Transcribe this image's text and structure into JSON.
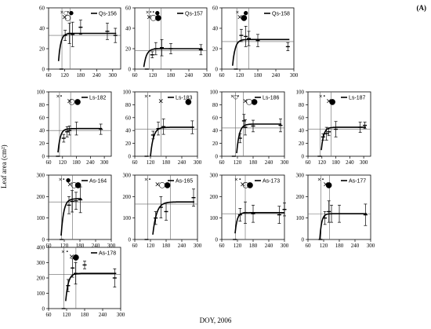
{
  "figure": {
    "panel_letter": "(A)",
    "ylabel": "Leaf area (cm²)",
    "xlabel": "DOY, 2006"
  },
  "chart_data": [
    {
      "type": "line",
      "name": "Qs-156",
      "ylim": [
        0,
        60
      ],
      "yticks": [
        0,
        20,
        40,
        60
      ],
      "xlim": [
        60,
        330
      ],
      "xticks": [
        60,
        120,
        180,
        240,
        300
      ],
      "x": [
        108,
        122,
        138,
        150,
        180,
        280,
        310
      ],
      "y": [
        0,
        33,
        35,
        34,
        41,
        37,
        33
      ],
      "errors": [
        0,
        5,
        10,
        12,
        7,
        8,
        7
      ],
      "fit": {
        "x0": 103,
        "k": 0.12,
        "ymax": 35
      },
      "plateau": 33,
      "vlines": [
        110,
        140
      ],
      "markers": [
        {
          "symbol": "×",
          "x": 110,
          "row": 0
        },
        {
          "symbol": "○",
          "x": 125,
          "row": 0
        },
        {
          "symbol": "•",
          "x": 133,
          "row": 0
        },
        {
          "symbol": "●",
          "x": 145,
          "row": 0
        },
        {
          "symbol": "×",
          "x": 120,
          "row": 1
        },
        {
          "symbol": "○",
          "x": 132,
          "row": 1
        }
      ]
    },
    {
      "type": "line",
      "name": "Qs-157",
      "ylim": [
        0,
        60
      ],
      "yticks": [
        0,
        20,
        40,
        60
      ],
      "xlim": [
        60,
        300
      ],
      "xticks": [
        60,
        120,
        180,
        240,
        300
      ],
      "x": [
        100,
        118,
        130,
        150,
        180,
        280
      ],
      "y": [
        0,
        14,
        20,
        21,
        20,
        19
      ],
      "errors": [
        0,
        3,
        6,
        8,
        5,
        5
      ],
      "fit": {
        "x0": 97,
        "k": 0.11,
        "ymax": 20
      },
      "plateau": 18,
      "vlines": [
        108,
        148
      ],
      "markers": [
        {
          "symbol": "×",
          "x": 102,
          "row": 0
        },
        {
          "symbol": "•",
          "x": 113,
          "row": 0
        },
        {
          "symbol": "•",
          "x": 122,
          "row": 0
        },
        {
          "symbol": "●",
          "x": 135,
          "row": 0
        },
        {
          "symbol": "×",
          "x": 108,
          "row": 1
        },
        {
          "symbol": "○",
          "x": 122,
          "row": 1
        },
        {
          "symbol": "●",
          "x": 138,
          "row": 1
        }
      ]
    },
    {
      "type": "line",
      "name": "Qs-158",
      "ylim": [
        0,
        60
      ],
      "yticks": [
        0,
        20,
        40,
        60
      ],
      "xlim": [
        60,
        300
      ],
      "xticks": [
        60,
        120,
        180,
        240,
        300
      ],
      "x": [
        107,
        125,
        140,
        150,
        180,
        280
      ],
      "y": [
        0,
        33,
        32,
        30,
        28,
        22
      ],
      "errors": [
        0,
        6,
        10,
        7,
        6,
        4
      ],
      "fit": {
        "x0": 103,
        "k": 0.12,
        "ymax": 29
      },
      "plateau": 27,
      "vlines": [
        110,
        150
      ],
      "markers": [
        {
          "symbol": "×",
          "x": 112,
          "row": 0
        },
        {
          "symbol": "●",
          "x": 140,
          "row": 0
        },
        {
          "symbol": "×",
          "x": 120,
          "row": 1
        },
        {
          "symbol": "●",
          "x": 134,
          "row": 1
        }
      ]
    },
    {
      "type": "line",
      "name": "Ls-182",
      "ylim": [
        0,
        100
      ],
      "yticks": [
        0,
        20,
        40,
        60,
        80,
        100
      ],
      "xlim": [
        60,
        330
      ],
      "xticks": [
        60,
        120,
        180,
        240,
        300
      ],
      "x": [
        100,
        125,
        140,
        150,
        180,
        285
      ],
      "y": [
        0,
        28,
        38,
        40,
        43,
        42
      ],
      "errors": [
        0,
        6,
        8,
        7,
        10,
        8
      ],
      "fit": {
        "x0": 107,
        "k": 0.1,
        "ymax": 43
      },
      "plateau": 40,
      "vlines": [
        107,
        155
      ],
      "markers": [
        {
          "symbol": "×",
          "x": 100,
          "row": 0
        },
        {
          "symbol": "•",
          "x": 114,
          "row": 0
        },
        {
          "symbol": "×",
          "x": 150,
          "row": 1
        },
        {
          "symbol": "○",
          "x": 160,
          "row": 1
        },
        {
          "symbol": "●",
          "x": 185,
          "row": 1
        }
      ]
    },
    {
      "type": "line",
      "name": "Ls-183",
      "ylim": [
        0,
        100
      ],
      "yticks": [
        0,
        20,
        40,
        60,
        80,
        100
      ],
      "xlim": [
        60,
        300
      ],
      "xticks": [
        60,
        120,
        180,
        240,
        300
      ],
      "x": [
        105,
        130,
        150,
        170,
        280
      ],
      "y": [
        0,
        33,
        43,
        46,
        45
      ],
      "errors": [
        0,
        6,
        10,
        12,
        10
      ],
      "fit": {
        "x0": 128,
        "k": 0.09,
        "ymax": 45
      },
      "plateau": 42,
      "vlines": [
        110,
        160
      ],
      "markers": [
        {
          "symbol": "×",
          "x": 103,
          "row": 0
        },
        {
          "symbol": "•",
          "x": 117,
          "row": 0
        },
        {
          "symbol": "×",
          "x": 160,
          "row": 1
        },
        {
          "symbol": "●",
          "x": 265,
          "row": 1
        }
      ]
    },
    {
      "type": "line",
      "name": "Ls-186",
      "ylim": [
        0,
        100
      ],
      "yticks": [
        0,
        20,
        40,
        60,
        80,
        100
      ],
      "xlim": [
        60,
        300
      ],
      "xticks": [
        60,
        120,
        180,
        240,
        300
      ],
      "x": [
        106,
        130,
        145,
        150,
        180,
        285
      ],
      "y": [
        0,
        28,
        55,
        45,
        47,
        48
      ],
      "errors": [
        0,
        7,
        10,
        12,
        9,
        10
      ],
      "fit": {
        "x0": 124,
        "k": 0.1,
        "ymax": 50
      },
      "plateau": 44,
      "vlines": [
        113,
        143
      ],
      "markers": [
        {
          "symbol": "×",
          "x": 100,
          "row": 0
        },
        {
          "symbol": "○",
          "x": 113,
          "row": 0
        },
        {
          "symbol": "•",
          "x": 123,
          "row": 0
        },
        {
          "symbol": "×",
          "x": 150,
          "row": 1
        },
        {
          "symbol": "○",
          "x": 165,
          "row": 1
        },
        {
          "symbol": "●",
          "x": 185,
          "row": 1
        }
      ]
    },
    {
      "type": "line",
      "name": "Ls-187",
      "ylim": [
        0,
        100
      ],
      "yticks": [
        0,
        20,
        40,
        60,
        80,
        100
      ],
      "xlim": [
        60,
        330
      ],
      "xticks": [
        60,
        120,
        180,
        240,
        300
      ],
      "x": [
        110,
        125,
        140,
        150,
        180,
        285,
        305
      ],
      "y": [
        0,
        30,
        35,
        38,
        42,
        45,
        48
      ],
      "errors": [
        0,
        5,
        10,
        6,
        12,
        8,
        5
      ],
      "fit": {
        "x0": 123,
        "k": 0.1,
        "ymax": 45
      },
      "plateau": 42,
      "vlines": [
        113,
        160
      ],
      "markers": [
        {
          "symbol": "×",
          "x": 115,
          "row": 0
        },
        {
          "symbol": "•",
          "x": 130,
          "row": 0
        },
        {
          "symbol": "×",
          "x": 150,
          "row": 1
        },
        {
          "symbol": "●",
          "x": 165,
          "row": 1
        }
      ]
    },
    {
      "type": "line",
      "name": "As-164",
      "ylim": [
        0,
        300
      ],
      "yticks": [
        0,
        100,
        200,
        300
      ],
      "xlim": [
        60,
        300
      ],
      "xticks": [
        60,
        120,
        180,
        240,
        300
      ],
      "x": [
        110,
        138,
        150,
        165,
        182
      ],
      "y": [
        0,
        160,
        178,
        180,
        185
      ],
      "errors": [
        0,
        40,
        50,
        40,
        60
      ],
      "fit": {
        "x0": 115,
        "k": 0.1,
        "ymax": 190
      },
      "plateau": 175,
      "vlines": [
        110,
        152
      ],
      "markers": [
        {
          "symbol": "×",
          "x": 105,
          "row": 0
        },
        {
          "symbol": "•",
          "x": 118,
          "row": 0
        },
        {
          "symbol": "●",
          "x": 135,
          "row": 0
        },
        {
          "symbol": "×",
          "x": 142,
          "row": 1
        },
        {
          "symbol": "○",
          "x": 158,
          "row": 1
        },
        {
          "symbol": "●",
          "x": 173,
          "row": 1
        }
      ]
    },
    {
      "type": "line",
      "name": "As-165",
      "ylim": [
        0,
        300
      ],
      "yticks": [
        0,
        100,
        200,
        300
      ],
      "xlim": [
        60,
        300
      ],
      "xticks": [
        60,
        120,
        180,
        240,
        300
      ],
      "x": [
        105,
        140,
        160,
        180,
        285
      ],
      "y": [
        0,
        100,
        150,
        130,
        195
      ],
      "errors": [
        0,
        30,
        50,
        40,
        40
      ],
      "fit": {
        "x0": 135,
        "k": 0.07,
        "ymax": 175
      },
      "plateau": 165,
      "vlines": [
        110,
        196
      ],
      "markers": [
        {
          "symbol": "×",
          "x": 103,
          "row": 0
        },
        {
          "symbol": "•",
          "x": 117,
          "row": 0
        },
        {
          "symbol": "×",
          "x": 147,
          "row": 1
        },
        {
          "symbol": "○",
          "x": 165,
          "row": 1
        },
        {
          "symbol": "●",
          "x": 185,
          "row": 1
        }
      ]
    },
    {
      "type": "line",
      "name": "As-173",
      "ylim": [
        0,
        300
      ],
      "yticks": [
        0,
        100,
        200,
        300
      ],
      "xlim": [
        60,
        300
      ],
      "xticks": [
        60,
        120,
        180,
        240,
        300
      ],
      "x": [
        110,
        130,
        150,
        180,
        280,
        300
      ],
      "y": [
        0,
        115,
        125,
        120,
        115,
        140
      ],
      "errors": [
        0,
        30,
        50,
        40,
        40,
        30
      ],
      "fit": {
        "x0": 117,
        "k": 0.13,
        "ymax": 125
      },
      "plateau": 120,
      "vlines": [
        112,
        150
      ],
      "markers": [
        {
          "symbol": "×",
          "x": 115,
          "row": 0
        },
        {
          "symbol": "•",
          "x": 130,
          "row": 0
        },
        {
          "symbol": "×",
          "x": 140,
          "row": 1
        },
        {
          "symbol": "○",
          "x": 152,
          "row": 1
        },
        {
          "symbol": "●",
          "x": 168,
          "row": 1
        }
      ]
    },
    {
      "type": "line",
      "name": "As-177",
      "ylim": [
        0,
        300
      ],
      "yticks": [
        0,
        100,
        200,
        300
      ],
      "xlim": [
        60,
        300
      ],
      "xticks": [
        60,
        120,
        180,
        240,
        300
      ],
      "x": [
        108,
        125,
        140,
        150,
        180,
        280
      ],
      "y": [
        0,
        100,
        130,
        120,
        120,
        115
      ],
      "errors": [
        0,
        30,
        50,
        40,
        40,
        50
      ],
      "fit": {
        "x0": 113,
        "k": 0.14,
        "ymax": 120
      },
      "plateau": 118,
      "vlines": [
        110,
        143
      ],
      "markers": [
        {
          "symbol": "×",
          "x": 103,
          "row": 0
        },
        {
          "symbol": "•",
          "x": 117,
          "row": 0
        },
        {
          "symbol": "×",
          "x": 128,
          "row": 1
        },
        {
          "symbol": "●",
          "x": 140,
          "row": 1
        }
      ]
    },
    {
      "type": "line",
      "name": "As-178",
      "ylim": [
        0,
        400
      ],
      "yticks": [
        0,
        100,
        200,
        300,
        400
      ],
      "xlim": [
        60,
        300
      ],
      "xticks": [
        60,
        120,
        180,
        240,
        300
      ],
      "x": [
        110,
        125,
        140,
        150,
        180,
        280
      ],
      "y": [
        0,
        150,
        265,
        230,
        285,
        200
      ],
      "errors": [
        0,
        40,
        60,
        70,
        25,
        60
      ],
      "fit": {
        "x0": 123,
        "k": 0.12,
        "ymax": 230
      },
      "plateau": 222,
      "vlines": [
        111,
        151
      ],
      "markers": [
        {
          "symbol": "×",
          "x": 108,
          "row": 0
        },
        {
          "symbol": "•",
          "x": 122,
          "row": 0
        },
        {
          "symbol": "×",
          "x": 137,
          "row": 1
        },
        {
          "symbol": "●",
          "x": 151,
          "row": 1
        }
      ]
    }
  ]
}
